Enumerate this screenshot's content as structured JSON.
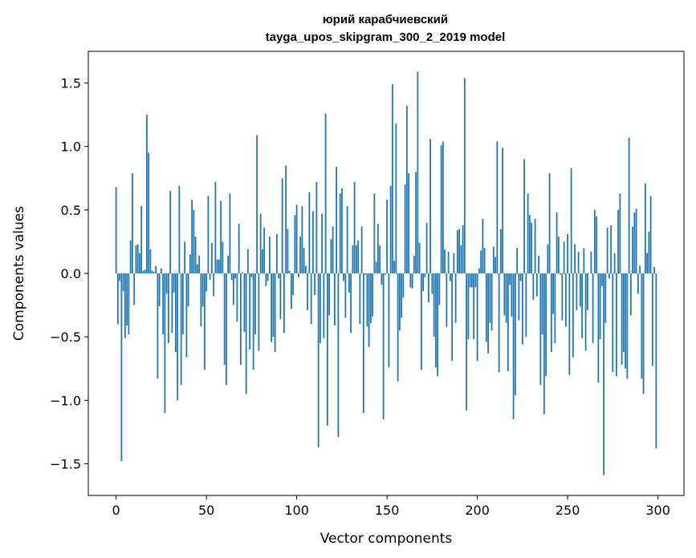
{
  "chart_data": {
    "type": "bar",
    "title": "юрий карабчиевский",
    "subtitle": "tayga_upos_skipgram_300_2_2019 model",
    "xlabel": "Vector components",
    "ylabel": "Components values",
    "xlim": [
      -15.4,
      314.4
    ],
    "ylim": [
      -1.75,
      1.75
    ],
    "xticks": [
      0,
      50,
      100,
      150,
      200,
      250,
      300
    ],
    "yticks": [
      -1.5,
      -1.0,
      -0.5,
      0.0,
      0.5,
      1.0,
      1.5
    ],
    "grid": false,
    "color": "#1f77b4",
    "values": [
      0.68,
      -0.4,
      -0.06,
      -1.48,
      -0.14,
      -0.51,
      -0.41,
      -0.48,
      0.26,
      0.79,
      -0.25,
      0.22,
      0.23,
      0.16,
      0.53,
      0.02,
      0.03,
      1.25,
      0.95,
      0.19,
      0.02,
      0.01,
      0.06,
      -0.83,
      -0.26,
      0.04,
      -0.48,
      -1.1,
      -0.16,
      -0.55,
      0.65,
      -0.47,
      -0.15,
      -0.62,
      -1.0,
      0.69,
      -0.88,
      -0.48,
      0.25,
      -0.66,
      -0.26,
      0.15,
      0.58,
      0.5,
      0.29,
      0.07,
      0.14,
      -0.42,
      -0.26,
      -0.76,
      -0.14,
      0.61,
      -0.05,
      0.24,
      -0.18,
      0.72,
      0.11,
      0.11,
      0.57,
      0.25,
      -0.72,
      -0.88,
      0.14,
      0.63,
      -0.05,
      -0.25,
      -0.04,
      -0.38,
      0.39,
      -0.72,
      0.01,
      -0.46,
      -0.95,
      0.19,
      -0.6,
      -0.03,
      -0.76,
      -0.48,
      1.09,
      -0.61,
      0.47,
      0.19,
      0.36,
      -0.1,
      -0.06,
      0.29,
      -0.54,
      -0.5,
      -0.62,
      0.31,
      -0.04,
      -0.36,
      0.75,
      -0.47,
      0.85,
      0.35,
      0.02,
      -0.28,
      -0.17,
      0.46,
      0.54,
      -0.03,
      0.29,
      0.53,
      0.2,
      0.06,
      -0.29,
      0.64,
      -0.4,
      0.49,
      -0.17,
      0.72,
      -1.37,
      -0.55,
      0.47,
      -0.51,
      1.26,
      -1.2,
      -0.33,
      0.27,
      0.37,
      -0.41,
      0.84,
      -1.29,
      0.63,
      0.67,
      -0.06,
      -0.35,
      0.53,
      -0.15,
      -0.47,
      0.22,
      0.72,
      0.22,
      0.26,
      -0.4,
      0.37,
      -1.1,
      -0.01,
      -0.42,
      -0.58,
      -0.39,
      -0.34,
      0.63,
      0.09,
      0.39,
      0.22,
      -0.09,
      -1.15,
      -0.01,
      0.58,
      -0.74,
      0.69,
      1.49,
      0.1,
      1.18,
      -0.85,
      -0.45,
      -0.35,
      -0.19,
      0.7,
      1.32,
      0.79,
      -0.11,
      -0.12,
      0.14,
      0.8,
      1.59,
      0.24,
      -0.76,
      -0.14,
      -0.03,
      0.4,
      -0.23,
      1.06,
      -0.16,
      -0.5,
      -0.74,
      -0.81,
      -0.25,
      1.01,
      1.04,
      0.19,
      -0.42,
      0.17,
      -0.06,
      -0.69,
      0.16,
      -0.39,
      0.34,
      0.35,
      0.22,
      0.38,
      1.54,
      -1.08,
      -0.52,
      -0.11,
      -0.11,
      -0.52,
      -0.11,
      -0.69,
      0.04,
      0.18,
      0.43,
      0.2,
      -0.54,
      -0.63,
      -0.39,
      -0.45,
      0.21,
      0.13,
      1.04,
      -0.78,
      0.35,
      0.99,
      -0.33,
      -0.39,
      -0.77,
      -0.09,
      -0.34,
      -1.15,
      -0.96,
      0.2,
      -0.37,
      -0.06,
      -0.56,
      0.9,
      -0.5,
      0.63,
      0.46,
      0.4,
      -0.21,
      0.43,
      -0.18,
      0.14,
      -0.88,
      -0.48,
      -1.11,
      -0.81,
      0.23,
      0.79,
      -0.62,
      -0.32,
      -0.55,
      0.48,
      0.29,
      -0.01,
      -0.37,
      0.25,
      -0.42,
      0.31,
      -0.8,
      0.83,
      -0.66,
      0.23,
      -0.29,
      0.17,
      -0.26,
      -0.51,
      0.2,
      -0.61,
      -0.29,
      0.0,
      0.17,
      -0.55,
      0.5,
      0.45,
      -0.86,
      -0.52,
      -0.1,
      -1.59,
      -0.39,
      0.36,
      -0.04,
      0.38,
      -0.78,
      0.16,
      -0.81,
      0.5,
      0.63,
      -0.72,
      -0.62,
      -0.75,
      -0.83,
      1.07,
      -0.33,
      0.37,
      0.48,
      0.51,
      -0.16,
      0.06,
      -0.83,
      -0.95,
      0.71,
      0.16,
      0.33,
      0.61,
      -0.73,
      0.05,
      -1.38
    ]
  }
}
